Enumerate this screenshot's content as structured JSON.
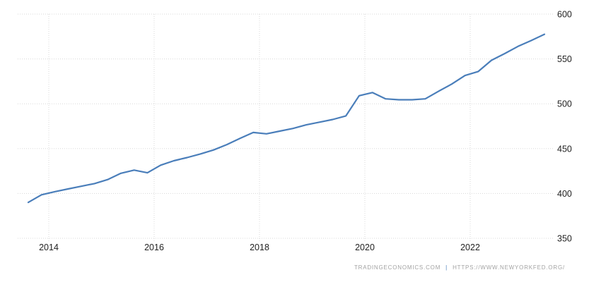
{
  "chart_data": {
    "type": "line",
    "title": "",
    "legend_position": "none",
    "grid": "dotted",
    "line_color": "#4a7eba",
    "x": [
      "2013 Q3",
      "2013 Q4",
      "2014 Q1",
      "2014 Q2",
      "2014 Q3",
      "2014 Q4",
      "2015 Q1",
      "2015 Q2",
      "2015 Q3",
      "2015 Q4",
      "2016 Q1",
      "2016 Q2",
      "2016 Q3",
      "2016 Q4",
      "2017 Q1",
      "2017 Q2",
      "2017 Q3",
      "2017 Q4",
      "2018 Q1",
      "2018 Q2",
      "2018 Q3",
      "2018 Q4",
      "2019 Q1",
      "2019 Q2",
      "2019 Q3",
      "2019 Q4",
      "2020 Q1",
      "2020 Q2",
      "2020 Q3",
      "2020 Q4",
      "2021 Q1",
      "2021 Q2",
      "2021 Q3",
      "2021 Q4",
      "2022 Q1",
      "2022 Q2",
      "2022 Q3",
      "2022 Q4",
      "2023 Q1",
      "2023 Q2"
    ],
    "values": [
      390,
      398.5,
      402,
      405,
      408,
      411,
      415.5,
      422.5,
      426,
      423,
      431.5,
      436.5,
      440,
      444,
      448.5,
      454.5,
      461.5,
      468,
      466.5,
      469.5,
      472.5,
      476.5,
      479.5,
      482.5,
      486.5,
      509,
      512.5,
      505.5,
      504.5,
      504.5,
      505.5,
      514,
      522,
      531.5,
      536,
      548.5,
      556,
      564,
      570.5,
      577.5
    ],
    "x_tick_labels": [
      "2014",
      "2016",
      "2018",
      "2020",
      "2022"
    ],
    "y_tick_labels": [
      "600",
      "550",
      "500",
      "450",
      "400",
      "350"
    ],
    "ylim": [
      350,
      600
    ],
    "xlabel": "",
    "ylabel": ""
  },
  "footer": {
    "source": "TRADINGECONOMICS.COM",
    "separator": "|",
    "link": "HTTPS://WWW.NEWYORKFED.ORG/"
  },
  "colors": {
    "background": "#ffffff",
    "line": "#4a7eba",
    "gridline": "#d8d8d8",
    "tick_label": "#222222",
    "attribution": "#a3a3a3",
    "attribution_separator": "#4a7eba"
  }
}
